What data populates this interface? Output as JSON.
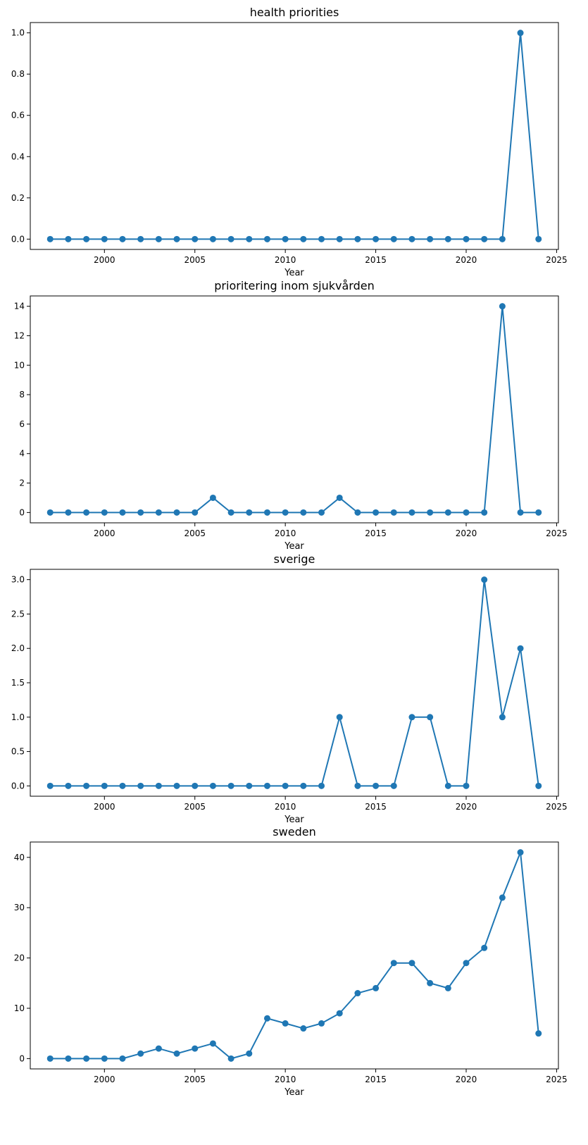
{
  "chart_data": [
    {
      "type": "line",
      "title": "health priorities",
      "xlabel": "Year",
      "ylabel": "",
      "color": "#1f77b4",
      "marker": "circle",
      "grid": false,
      "xlim": [
        1995.9,
        2025.1
      ],
      "ylim": [
        -0.05,
        1.05
      ],
      "xticks": [
        2000,
        2005,
        2010,
        2015,
        2020,
        2025
      ],
      "yticks": [
        0.0,
        0.2,
        0.4,
        0.6,
        0.8,
        1.0
      ],
      "ytick_decimals": 1,
      "x": [
        1997,
        1998,
        1999,
        2000,
        2001,
        2002,
        2003,
        2004,
        2005,
        2006,
        2007,
        2008,
        2009,
        2010,
        2011,
        2012,
        2013,
        2014,
        2015,
        2016,
        2017,
        2018,
        2019,
        2020,
        2021,
        2022,
        2023,
        2024
      ],
      "values": [
        0,
        0,
        0,
        0,
        0,
        0,
        0,
        0,
        0,
        0,
        0,
        0,
        0,
        0,
        0,
        0,
        0,
        0,
        0,
        0,
        0,
        0,
        0,
        0,
        0,
        0,
        1,
        0
      ]
    },
    {
      "type": "line",
      "title": "prioritering inom sjukvården",
      "xlabel": "Year",
      "ylabel": "",
      "color": "#1f77b4",
      "marker": "circle",
      "grid": false,
      "xlim": [
        1995.9,
        2025.1
      ],
      "ylim": [
        -0.7,
        14.7
      ],
      "xticks": [
        2000,
        2005,
        2010,
        2015,
        2020,
        2025
      ],
      "yticks": [
        0,
        2,
        4,
        6,
        8,
        10,
        12,
        14
      ],
      "ytick_decimals": 0,
      "x": [
        1997,
        1998,
        1999,
        2000,
        2001,
        2002,
        2003,
        2004,
        2005,
        2006,
        2007,
        2008,
        2009,
        2010,
        2011,
        2012,
        2013,
        2014,
        2015,
        2016,
        2017,
        2018,
        2019,
        2020,
        2021,
        2022,
        2023,
        2024
      ],
      "values": [
        0,
        0,
        0,
        0,
        0,
        0,
        0,
        0,
        0,
        1,
        0,
        0,
        0,
        0,
        0,
        0,
        1,
        0,
        0,
        0,
        0,
        0,
        0,
        0,
        0,
        14,
        0,
        0
      ]
    },
    {
      "type": "line",
      "title": "sverige",
      "xlabel": "Year",
      "ylabel": "",
      "color": "#1f77b4",
      "marker": "circle",
      "grid": false,
      "xlim": [
        1995.9,
        2025.1
      ],
      "ylim": [
        -0.15,
        3.15
      ],
      "xticks": [
        2000,
        2005,
        2010,
        2015,
        2020,
        2025
      ],
      "yticks": [
        0.0,
        0.5,
        1.0,
        1.5,
        2.0,
        2.5,
        3.0
      ],
      "ytick_decimals": 1,
      "x": [
        1997,
        1998,
        1999,
        2000,
        2001,
        2002,
        2003,
        2004,
        2005,
        2006,
        2007,
        2008,
        2009,
        2010,
        2011,
        2012,
        2013,
        2014,
        2015,
        2016,
        2017,
        2018,
        2019,
        2020,
        2021,
        2022,
        2023,
        2024
      ],
      "values": [
        0,
        0,
        0,
        0,
        0,
        0,
        0,
        0,
        0,
        0,
        0,
        0,
        0,
        0,
        0,
        0,
        1,
        0,
        0,
        0,
        1,
        1,
        0,
        0,
        3,
        1,
        2,
        0
      ]
    },
    {
      "type": "line",
      "title": "sweden",
      "xlabel": "Year",
      "ylabel": "",
      "color": "#1f77b4",
      "marker": "circle",
      "grid": false,
      "xlim": [
        1995.9,
        2025.1
      ],
      "ylim": [
        -2.05,
        43.05
      ],
      "xticks": [
        2000,
        2005,
        2010,
        2015,
        2020,
        2025
      ],
      "yticks": [
        0,
        10,
        20,
        30,
        40
      ],
      "ytick_decimals": 0,
      "x": [
        1997,
        1998,
        1999,
        2000,
        2001,
        2002,
        2003,
        2004,
        2005,
        2006,
        2007,
        2008,
        2009,
        2010,
        2011,
        2012,
        2013,
        2014,
        2015,
        2016,
        2017,
        2018,
        2019,
        2020,
        2021,
        2022,
        2023,
        2024
      ],
      "values": [
        0,
        0,
        0,
        0,
        0,
        1,
        2,
        1,
        2,
        3,
        0,
        1,
        8,
        7,
        6,
        7,
        9,
        13,
        14,
        19,
        19,
        15,
        14,
        19,
        22,
        32,
        41,
        5
      ]
    }
  ]
}
